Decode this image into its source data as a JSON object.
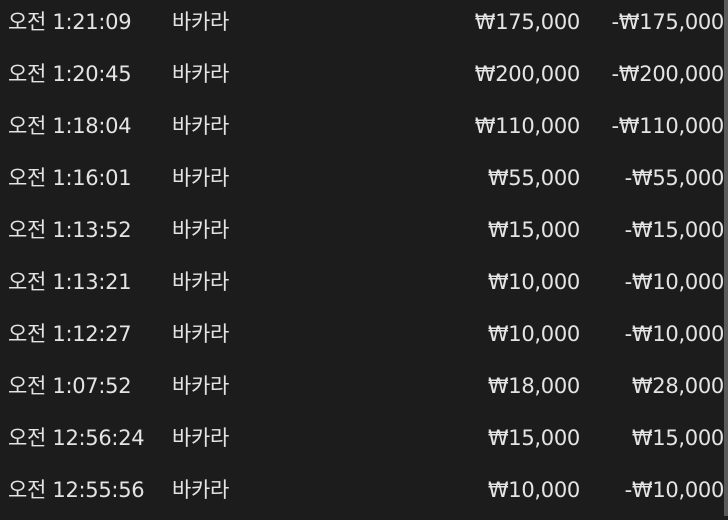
{
  "transactions": [
    {
      "time": "오전 1:21:09",
      "game": "바카라",
      "bet": "₩175,000",
      "result": "-₩175,000"
    },
    {
      "time": "오전 1:20:45",
      "game": "바카라",
      "bet": "₩200,000",
      "result": "-₩200,000"
    },
    {
      "time": "오전 1:18:04",
      "game": "바카라",
      "bet": "₩110,000",
      "result": "-₩110,000"
    },
    {
      "time": "오전 1:16:01",
      "game": "바카라",
      "bet": "₩55,000",
      "result": "-₩55,000"
    },
    {
      "time": "오전 1:13:52",
      "game": "바카라",
      "bet": "₩15,000",
      "result": "-₩15,000"
    },
    {
      "time": "오전 1:13:21",
      "game": "바카라",
      "bet": "₩10,000",
      "result": "-₩10,000"
    },
    {
      "time": "오전 1:12:27",
      "game": "바카라",
      "bet": "₩10,000",
      "result": "-₩10,000"
    },
    {
      "time": "오전 1:07:52",
      "game": "바카라",
      "bet": "₩18,000",
      "result": "₩28,000"
    },
    {
      "time": "오전 12:56:24",
      "game": "바카라",
      "bet": "₩15,000",
      "result": "₩15,000"
    },
    {
      "time": "오전 12:55:56",
      "game": "바카라",
      "bet": "₩10,000",
      "result": "-₩10,000"
    }
  ]
}
